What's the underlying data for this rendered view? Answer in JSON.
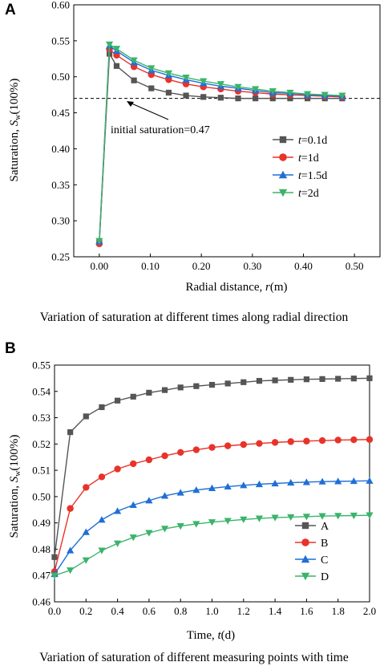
{
  "chart_data": [
    {
      "type": "line",
      "panel_label": "A",
      "xlabel": "Radial distance, r(m)",
      "ylabel": "Saturation, Sw(100%)",
      "xlim": [
        -0.05,
        0.55
      ],
      "ylim": [
        0.25,
        0.6
      ],
      "xticks": [
        "0.00",
        "0.10",
        "0.20",
        "0.30",
        "0.40",
        "0.50"
      ],
      "yticks": [
        "0.25",
        "0.30",
        "0.35",
        "0.40",
        "0.45",
        "0.50",
        "0.55",
        "0.60"
      ],
      "legend_position": "right",
      "caption": "Variation of saturation at different times along radial direction",
      "reference_line": {
        "y": 0.47,
        "label": "initial saturation=0.47",
        "style": "dashed"
      },
      "x": [
        0.0,
        0.02,
        0.034,
        0.068,
        0.102,
        0.136,
        0.17,
        0.204,
        0.238,
        0.272,
        0.306,
        0.34,
        0.374,
        0.408,
        0.442,
        0.476
      ],
      "series": [
        {
          "name": "t=0.1d",
          "label_var": "t",
          "label_rest": "=0.1d",
          "color": "#555555",
          "marker": "square",
          "values": [
            0.27,
            0.532,
            0.515,
            0.495,
            0.484,
            0.478,
            0.474,
            0.472,
            0.471,
            0.47,
            0.47,
            0.47,
            0.47,
            0.47,
            0.47,
            0.47
          ]
        },
        {
          "name": "t=1d",
          "label_var": "t",
          "label_rest": "=1d",
          "color": "#e8332a",
          "marker": "circle",
          "values": [
            0.268,
            0.538,
            0.53,
            0.514,
            0.503,
            0.496,
            0.49,
            0.486,
            0.483,
            0.48,
            0.478,
            0.476,
            0.475,
            0.474,
            0.473,
            0.472
          ]
        },
        {
          "name": "t=1.5d",
          "label_var": "t",
          "label_rest": "=1.5d",
          "color": "#1f6fd6",
          "marker": "triangle-up",
          "values": [
            0.271,
            0.543,
            0.536,
            0.52,
            0.509,
            0.502,
            0.496,
            0.491,
            0.487,
            0.484,
            0.481,
            0.478,
            0.477,
            0.475,
            0.474,
            0.473
          ]
        },
        {
          "name": "t=2d",
          "label_var": "t",
          "label_rest": "=2d",
          "color": "#3ab46a",
          "marker": "triangle-down",
          "values": [
            0.272,
            0.545,
            0.539,
            0.523,
            0.512,
            0.505,
            0.499,
            0.494,
            0.49,
            0.486,
            0.483,
            0.48,
            0.478,
            0.476,
            0.475,
            0.474
          ]
        }
      ]
    },
    {
      "type": "line",
      "panel_label": "B",
      "xlabel": "Time, t(d)",
      "ylabel": "Saturation, Sw(100%)",
      "xlim": [
        0.0,
        2.0
      ],
      "ylim": [
        0.46,
        0.55
      ],
      "xticks": [
        "0.0",
        "0.2",
        "0.4",
        "0.6",
        "0.8",
        "1.0",
        "1.2",
        "1.4",
        "1.6",
        "1.8",
        "2.0"
      ],
      "yticks": [
        "0.46",
        "0.47",
        "0.48",
        "0.49",
        "0.50",
        "0.51",
        "0.52",
        "0.53",
        "0.54",
        "0.55"
      ],
      "legend_position": "bottom-right",
      "caption": "Variation of saturation of different measuring points with time",
      "x": [
        0.0,
        0.1,
        0.2,
        0.3,
        0.4,
        0.5,
        0.6,
        0.7,
        0.8,
        0.9,
        1.0,
        1.1,
        1.2,
        1.3,
        1.4,
        1.5,
        1.6,
        1.7,
        1.8,
        1.9,
        2.0
      ],
      "series": [
        {
          "name": "A",
          "color": "#555555",
          "marker": "square",
          "values": [
            0.477,
            0.5245,
            0.5305,
            0.534,
            0.5365,
            0.538,
            0.5395,
            0.5405,
            0.5415,
            0.542,
            0.5425,
            0.543,
            0.5435,
            0.544,
            0.5442,
            0.5444,
            0.5446,
            0.5447,
            0.5448,
            0.5449,
            0.545
          ]
        },
        {
          "name": "B",
          "color": "#e8332a",
          "marker": "circle",
          "values": [
            0.4715,
            0.4955,
            0.5035,
            0.5075,
            0.5105,
            0.5125,
            0.514,
            0.5155,
            0.5168,
            0.5178,
            0.5187,
            0.5193,
            0.5198,
            0.5202,
            0.5206,
            0.5209,
            0.5211,
            0.5213,
            0.5215,
            0.5216,
            0.5217
          ]
        },
        {
          "name": "C",
          "color": "#1f6fd6",
          "marker": "triangle-up",
          "values": [
            0.4705,
            0.4795,
            0.4865,
            0.4912,
            0.4945,
            0.4968,
            0.4985,
            0.5003,
            0.5015,
            0.5025,
            0.5032,
            0.5038,
            0.5043,
            0.5047,
            0.505,
            0.5053,
            0.5055,
            0.5057,
            0.5058,
            0.5059,
            0.506
          ]
        },
        {
          "name": "D",
          "color": "#3ab46a",
          "marker": "triangle-down",
          "values": [
            0.47,
            0.472,
            0.4758,
            0.4795,
            0.4822,
            0.4845,
            0.4862,
            0.4878,
            0.4888,
            0.4896,
            0.4903,
            0.4908,
            0.4913,
            0.4917,
            0.492,
            0.4922,
            0.4924,
            0.4926,
            0.4927,
            0.4928,
            0.4929
          ]
        }
      ]
    }
  ]
}
